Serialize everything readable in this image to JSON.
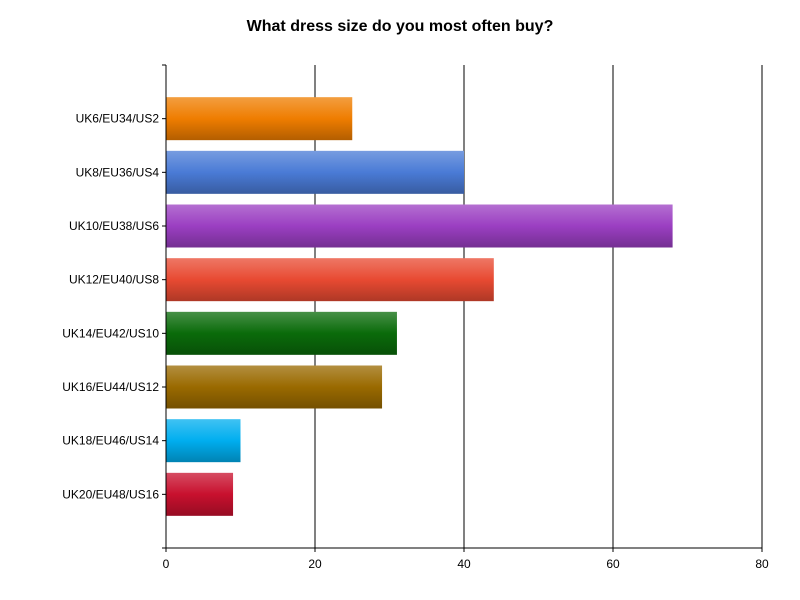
{
  "chart_data": {
    "type": "bar",
    "orientation": "horizontal",
    "title": "What dress size do you most often buy?",
    "xlabel": "",
    "ylabel": "",
    "xlim": [
      0,
      80
    ],
    "ticks": [
      0,
      20,
      40,
      60,
      80
    ],
    "grid": true,
    "legend": "none",
    "categories": [
      "UK6/EU34/US2",
      "UK8/EU36/US4",
      "UK10/EU38/US6",
      "UK12/EU40/US8",
      "UK14/EU42/US10",
      "UK16/EU44/US12",
      "UK18/EU46/US14",
      "UK20/EU48/US16"
    ],
    "values": [
      25,
      40,
      68,
      44,
      31,
      29,
      10,
      9
    ],
    "colors": [
      "#ef7d00",
      "#4a7bd6",
      "#9b3fc2",
      "#e84a32",
      "#0a6b0a",
      "#9a6a00",
      "#00aeef",
      "#c8102e"
    ]
  }
}
